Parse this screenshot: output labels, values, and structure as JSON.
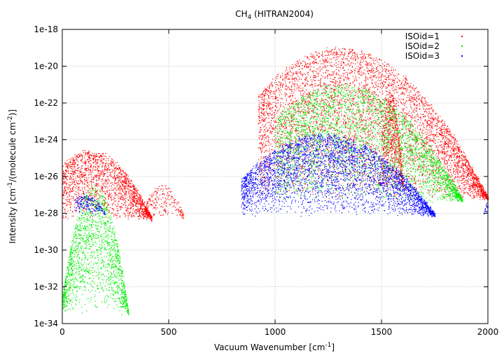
{
  "chart_data": {
    "type": "scatter",
    "title": "CH4 (HITRAN2004)",
    "title_main": "CH",
    "title_sub": "4",
    "title_rest": " (HITRAN2004)",
    "xlabel": "Vacuum Wavenumber [cm-1]",
    "xlabel_main": "Vacuum Wavenumber [cm",
    "xlabel_sup": "-1",
    "xlabel_end": "]",
    "ylabel": "Intensity [cm-1/(molecule cm-2)]",
    "ylabel_a": "Intensity [cm",
    "ylabel_sup1": "-1",
    "ylabel_b": "/(molecule cm",
    "ylabel_sup2": "-2",
    "ylabel_c": ")]",
    "xlim": [
      0,
      2000
    ],
    "ylim_log10": [
      -34,
      -18
    ],
    "y_scale": "log",
    "x_ticks": [
      0,
      500,
      1000,
      1500,
      2000
    ],
    "x_tick_labels": [
      "0",
      "500",
      "1000",
      "1500",
      "2000"
    ],
    "y_ticks_log10": [
      -18,
      -20,
      -22,
      -24,
      -26,
      -28,
      -30,
      -32,
      -34
    ],
    "y_tick_labels": [
      "1e-18",
      "1e-20",
      "1e-22",
      "1e-24",
      "1e-26",
      "1e-28",
      "1e-30",
      "1e-32",
      "1e-34"
    ],
    "grid": true,
    "legend_position": "top-right",
    "series": [
      {
        "name": "ISOid=1",
        "color": "#ff0000",
        "clusters": [
          {
            "x": [
              0,
              420
            ],
            "log_floor": -28.3,
            "log_peak_x": 130,
            "log_peak": -24.6,
            "density": 1800
          },
          {
            "x": [
              380,
              570
            ],
            "log_floor": -28.2,
            "log_peak_x": 470,
            "log_peak": -26.5,
            "density": 220
          },
          {
            "x": [
              920,
              2000
            ],
            "log_floor": -27.2,
            "log_peak_x": 1306,
            "log_peak": -19.0,
            "density": 5200
          },
          {
            "x": [
              1500,
              1600
            ],
            "log_floor": -26.5,
            "log_peak_x": 1540,
            "log_peak": -21.5,
            "density": 600
          }
        ]
      },
      {
        "name": "ISOid=2",
        "color": "#00ee00",
        "clusters": [
          {
            "x": [
              0,
              310
            ],
            "log_floor": -33.4,
            "log_peak_x": 150,
            "log_peak": -26.5,
            "density": 1700
          },
          {
            "x": [
              1000,
              1880
            ],
            "log_floor": -27.3,
            "log_peak_x": 1310,
            "log_peak": -21.0,
            "density": 3200
          }
        ]
      },
      {
        "name": "ISOid=3",
        "color": "#0000ff",
        "clusters": [
          {
            "x": [
              60,
              200
            ],
            "log_floor": -28.0,
            "log_peak_x": 100,
            "log_peak": -27.0,
            "density": 180
          },
          {
            "x": [
              840,
              1750
            ],
            "log_floor": -28.1,
            "log_peak_x": 1230,
            "log_peak": -23.7,
            "density": 3600
          },
          {
            "x": [
              1980,
              2000
            ],
            "log_floor": -28.0,
            "log_peak_x": 1995,
            "log_peak": -27.5,
            "density": 20
          }
        ]
      }
    ]
  }
}
